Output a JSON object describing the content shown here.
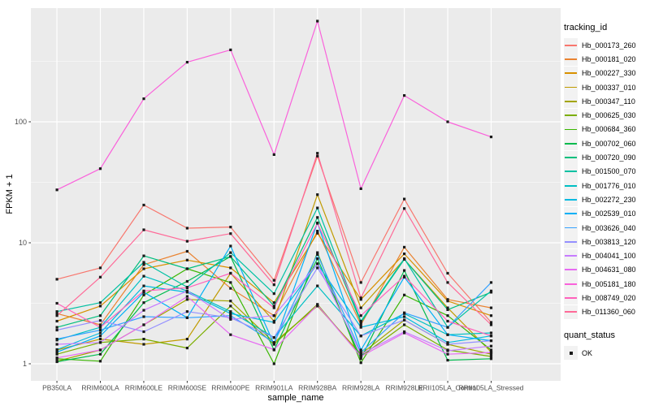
{
  "figure": {
    "background": "#FFFFFF",
    "panel_bg": "#EBEBEB",
    "grid_color": "#FFFFFF",
    "axis_text_color": "#4D4D4D",
    "tick_mark_color": "#333333",
    "point_color": "#1A1A1A",
    "legend_key_bg": "#F2F2F2"
  },
  "chart_data": {
    "type": "line",
    "title": "",
    "xlabel": "sample_name",
    "ylabel": "FPKM + 1",
    "y_scale": "log10",
    "y_ticks": [
      1,
      10,
      100
    ],
    "y_minor_ticks": [
      3.162,
      31.62,
      316.2
    ],
    "ylim": [
      1,
      855
    ],
    "grid": "on",
    "legend_position": "right",
    "point_shape": "square",
    "legend_titles": {
      "series": "tracking_id",
      "status": "quant_status"
    },
    "status_legend": {
      "label": "OK"
    },
    "categories": [
      "PB350LA",
      "RRIM600LA",
      "RRIM600LE",
      "RRIM600SE",
      "RRIM600PE",
      "RRIM901LA",
      "RRIM928BA",
      "RRIM928LA",
      "RRIM928LE",
      "RRII105LA_Control",
      "RRII105LA_Stressed"
    ],
    "series": [
      {
        "name": "Hb_000173_260",
        "color": "#F8766D",
        "values": [
          5.0,
          6.2,
          20.5,
          13.2,
          13.5,
          4.9,
          52,
          4.7,
          23.0,
          5.6,
          2.2
        ]
      },
      {
        "name": "Hb_000181_020",
        "color": "#EA8331",
        "values": [
          2.6,
          2.1,
          6.6,
          8.5,
          4.2,
          2.5,
          12.5,
          2.1,
          9.2,
          3.4,
          2.9
        ]
      },
      {
        "name": "Hb_000227_330",
        "color": "#D89000",
        "values": [
          2.25,
          3.0,
          6.1,
          7.2,
          6.2,
          3.2,
          12.0,
          3.4,
          8.1,
          3.3,
          2.5
        ]
      },
      {
        "name": "Hb_000337_010",
        "color": "#C09B00",
        "values": [
          1.3,
          1.6,
          1.45,
          1.6,
          5.6,
          2.25,
          25.0,
          2.9,
          7.3,
          2.9,
          1.25
        ]
      },
      {
        "name": "Hb_000347_110",
        "color": "#A3A500",
        "values": [
          1.05,
          1.3,
          2.1,
          3.4,
          3.3,
          1.5,
          3.0,
          1.2,
          2.3,
          1.45,
          1.2
        ]
      },
      {
        "name": "Hb_000625_030",
        "color": "#7CAE00",
        "values": [
          1.2,
          1.5,
          1.6,
          1.35,
          3.0,
          1.45,
          3.1,
          1.15,
          2.1,
          1.3,
          1.15
        ]
      },
      {
        "name": "Hb_000684_360",
        "color": "#39B600",
        "values": [
          1.1,
          1.05,
          3.7,
          6.1,
          4.7,
          1.0,
          8.3,
          1.02,
          3.7,
          2.5,
          1.3
        ]
      },
      {
        "name": "Hb_000702_060",
        "color": "#00BB4E",
        "values": [
          1.04,
          1.2,
          3.2,
          4.8,
          7.7,
          1.3,
          7.4,
          1.1,
          5.9,
          1.07,
          1.1
        ]
      },
      {
        "name": "Hb_000720_090",
        "color": "#00BF7D",
        "values": [
          2.0,
          2.5,
          7.8,
          6.1,
          7.7,
          3.0,
          16.2,
          2.2,
          7.3,
          2.8,
          3.9
        ]
      },
      {
        "name": "Hb_001500_070",
        "color": "#00C1A3",
        "values": [
          2.7,
          3.2,
          6.9,
          4.3,
          8.3,
          3.8,
          19.4,
          2.25,
          7.4,
          2.0,
          4.0
        ]
      },
      {
        "name": "Hb_001776_010",
        "color": "#00BFC4",
        "values": [
          1.57,
          2.0,
          5.3,
          4.0,
          2.7,
          1.65,
          4.4,
          1.7,
          2.6,
          1.74,
          1.8
        ]
      },
      {
        "name": "Hb_002272_230",
        "color": "#00BAE0",
        "values": [
          1.31,
          1.8,
          4.4,
          3.9,
          2.6,
          2.2,
          6.7,
          2.0,
          2.45,
          1.5,
          1.7
        ]
      },
      {
        "name": "Hb_002539_010",
        "color": "#00B0F6",
        "values": [
          1.25,
          1.7,
          3.9,
          2.4,
          9.4,
          1.45,
          14.6,
          1.3,
          5.2,
          1.74,
          1.55
        ]
      },
      {
        "name": "Hb_003626_040",
        "color": "#35A2FF",
        "values": [
          1.6,
          1.9,
          2.45,
          2.4,
          2.5,
          1.5,
          8.0,
          1.24,
          2.64,
          2.0,
          4.7
        ]
      },
      {
        "name": "Hb_003813_120",
        "color": "#9590FF",
        "values": [
          1.9,
          2.28,
          1.84,
          2.7,
          2.4,
          1.65,
          6.2,
          1.7,
          2.3,
          1.45,
          1.55
        ]
      },
      {
        "name": "Hb_004041_100",
        "color": "#C77CFF",
        "values": [
          1.45,
          1.5,
          2.77,
          4.0,
          2.33,
          2.5,
          6.7,
          1.2,
          1.84,
          1.28,
          1.4
        ]
      },
      {
        "name": "Hb_004631_080",
        "color": "#E76BF3",
        "values": [
          1.12,
          1.3,
          2.1,
          3.6,
          1.74,
          1.31,
          3.05,
          1.15,
          1.8,
          1.2,
          1.24
        ]
      },
      {
        "name": "Hb_005181_180",
        "color": "#FA62DB",
        "values": [
          27.4,
          41,
          155,
          311,
          393,
          53.6,
          680,
          28,
          165,
          100,
          75
        ]
      },
      {
        "name": "Hb_008749_020",
        "color": "#FF62BC",
        "values": [
          3.16,
          2.0,
          4.0,
          4.25,
          5.6,
          2.9,
          14.5,
          2.5,
          5.3,
          2.25,
          1.7
        ]
      },
      {
        "name": "Hb_011360_060",
        "color": "#FF6A98",
        "values": [
          2.5,
          5.2,
          12.8,
          10.3,
          11.9,
          4.5,
          55,
          3.5,
          19.2,
          4.7,
          2.1
        ]
      }
    ]
  }
}
